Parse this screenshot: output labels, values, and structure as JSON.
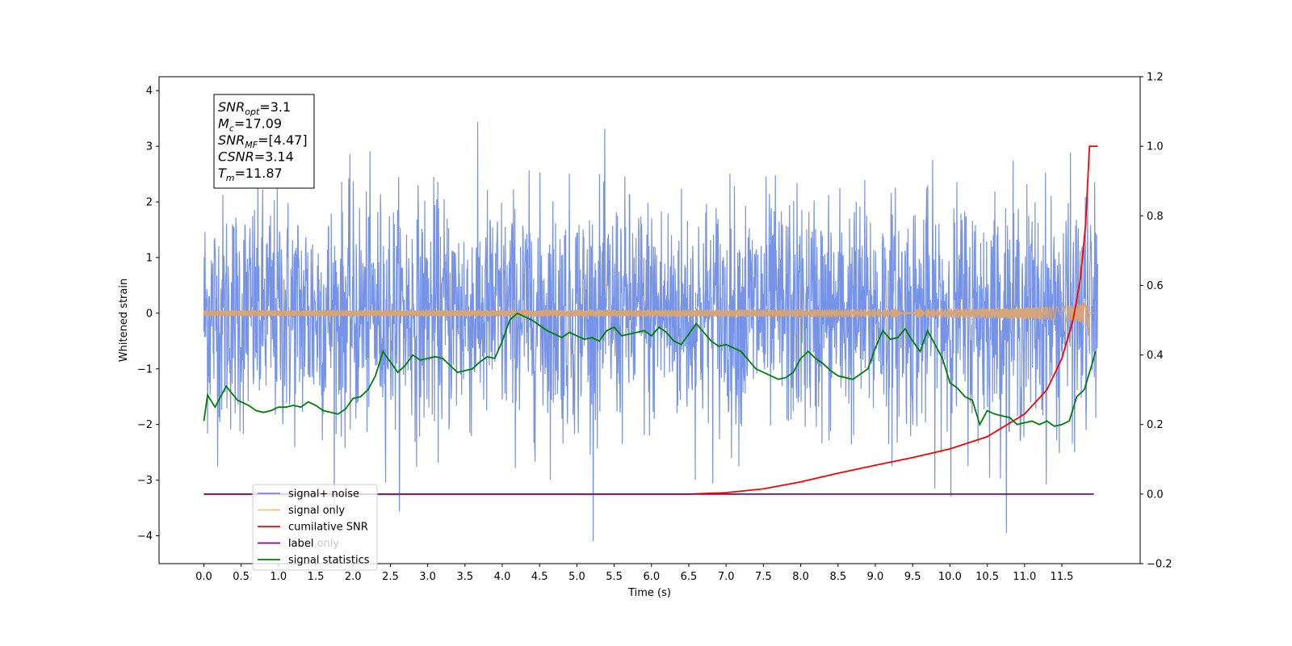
{
  "chart_data": {
    "type": "line",
    "title": "",
    "xlabel": "Time (s)",
    "ylabel": "Whitened strain",
    "ylabel_right": "",
    "xlim": [
      -0.6,
      12.55
    ],
    "ylim": [
      -4.5,
      4.25
    ],
    "ylim_right": [
      -0.2,
      1.2
    ],
    "x_ticks": [
      0.0,
      0.5,
      1.0,
      1.5,
      2.0,
      2.5,
      3.0,
      3.5,
      4.0,
      4.5,
      5.0,
      5.5,
      6.0,
      6.5,
      7.0,
      7.5,
      8.0,
      8.5,
      9.0,
      9.5,
      10.0,
      10.5,
      11.0,
      11.5
    ],
    "x_tick_labels": [
      "0.0",
      "0.5",
      "1.0",
      "1.5",
      "2.0",
      "2.5",
      "3.0",
      "3.5",
      "4.0",
      "4.5",
      "5.0",
      "5.5",
      "6.0",
      "6.5",
      "7.0",
      "7.5",
      "8.0",
      "8.5",
      "9.0",
      "9.5",
      "10.0",
      "10.5",
      "11.0",
      "11.5"
    ],
    "y_ticks": [
      -4,
      -3,
      -2,
      -1,
      0,
      1,
      2,
      3,
      4
    ],
    "y_tick_labels": [
      "−4",
      "−3",
      "−2",
      "−1",
      "0",
      "1",
      "2",
      "3",
      "4"
    ],
    "y_right_ticks": [
      -0.2,
      0.0,
      0.2,
      0.4,
      0.6,
      0.8,
      1.0,
      1.2
    ],
    "y_right_tick_labels": [
      "−0.2",
      "0.0",
      "0.2",
      "0.4",
      "0.6",
      "0.8",
      "1.0",
      "1.2"
    ],
    "grid": false,
    "legend_position": "lower-left",
    "legend": [
      {
        "name": "signal+ noise",
        "color": "#6f8de6"
      },
      {
        "name": "signal only",
        "color": "#f6bf6f"
      },
      {
        "name": "cumilative SNR",
        "color": "#ff0000"
      },
      {
        "name": "label",
        "color": "#800080"
      },
      {
        "name": "signal statistics",
        "color": "#008000"
      }
    ],
    "hidden_legend_text": "label only",
    "annotation": {
      "lines": [
        {
          "var": "SNR",
          "sub": "opt",
          "value": "=3.1"
        },
        {
          "var": "M",
          "sub": "c",
          "value": "=17.09"
        },
        {
          "var": "SNR",
          "sub": "MF",
          "value": "=[4.47]"
        },
        {
          "var": "CSNR",
          "sub": "",
          "value": "=3.14"
        },
        {
          "var": "T",
          "sub": "m",
          "value": "=11.87"
        }
      ]
    },
    "series": [
      {
        "name": "signal+ noise",
        "axis": "left",
        "color": "#6f8de6",
        "noise": {
          "x_start": 0.0,
          "x_end": 11.98,
          "samples": 2400,
          "std": 1.05,
          "peak": 3.85,
          "trough": -4.1
        }
      },
      {
        "name": "signal only",
        "axis": "left",
        "color": "#d4a57a",
        "chirp": {
          "x_start": 0.0,
          "x_end": 11.98,
          "merger_time": 11.87,
          "final_amplitude": 0.6
        }
      },
      {
        "name": "cumilative SNR",
        "axis": "right",
        "x": [
          0.0,
          6.5,
          7.0,
          7.5,
          8.0,
          8.5,
          9.0,
          9.5,
          10.0,
          10.5,
          11.0,
          11.3,
          11.5,
          11.65,
          11.75,
          11.82,
          11.87,
          11.98
        ],
        "values": [
          0.0,
          0.0,
          0.004,
          0.015,
          0.035,
          0.06,
          0.083,
          0.105,
          0.13,
          0.165,
          0.23,
          0.3,
          0.39,
          0.5,
          0.62,
          0.78,
          1.0,
          1.0
        ]
      },
      {
        "name": "label",
        "axis": "right",
        "x": [
          0.0,
          11.93
        ],
        "values": [
          0.0,
          0.0
        ]
      },
      {
        "name": "signal statistics",
        "axis": "right",
        "x": [
          0.0,
          0.05,
          0.15,
          0.3,
          0.45,
          0.6,
          0.7,
          0.8,
          0.9,
          1.0,
          1.1,
          1.2,
          1.3,
          1.4,
          1.5,
          1.6,
          1.7,
          1.8,
          1.9,
          2.0,
          2.1,
          2.2,
          2.3,
          2.4,
          2.5,
          2.6,
          2.7,
          2.8,
          2.9,
          3.0,
          3.1,
          3.2,
          3.3,
          3.4,
          3.5,
          3.6,
          3.7,
          3.8,
          3.9,
          4.0,
          4.1,
          4.2,
          4.3,
          4.4,
          4.5,
          4.6,
          4.7,
          4.8,
          4.9,
          5.0,
          5.1,
          5.2,
          5.3,
          5.4,
          5.5,
          5.6,
          5.7,
          5.8,
          5.9,
          6.0,
          6.1,
          6.2,
          6.3,
          6.4,
          6.5,
          6.6,
          6.7,
          6.8,
          6.9,
          7.0,
          7.1,
          7.2,
          7.3,
          7.4,
          7.5,
          7.6,
          7.7,
          7.8,
          7.9,
          8.0,
          8.1,
          8.2,
          8.3,
          8.4,
          8.5,
          8.6,
          8.7,
          8.8,
          8.9,
          9.0,
          9.1,
          9.2,
          9.3,
          9.4,
          9.5,
          9.6,
          9.7,
          9.8,
          9.9,
          10.0,
          10.1,
          10.2,
          10.3,
          10.4,
          10.5,
          10.6,
          10.7,
          10.8,
          10.9,
          11.0,
          11.1,
          11.2,
          11.3,
          11.4,
          11.5,
          11.6,
          11.7,
          11.8,
          11.9,
          11.95
        ],
        "values": [
          0.21,
          0.285,
          0.25,
          0.31,
          0.27,
          0.255,
          0.24,
          0.235,
          0.24,
          0.25,
          0.25,
          0.255,
          0.25,
          0.265,
          0.255,
          0.24,
          0.235,
          0.23,
          0.245,
          0.275,
          0.28,
          0.3,
          0.34,
          0.41,
          0.38,
          0.35,
          0.37,
          0.4,
          0.385,
          0.39,
          0.395,
          0.39,
          0.37,
          0.35,
          0.355,
          0.36,
          0.38,
          0.395,
          0.39,
          0.44,
          0.5,
          0.52,
          0.51,
          0.5,
          0.485,
          0.47,
          0.46,
          0.45,
          0.465,
          0.455,
          0.445,
          0.45,
          0.44,
          0.47,
          0.48,
          0.455,
          0.46,
          0.465,
          0.47,
          0.455,
          0.48,
          0.465,
          0.44,
          0.43,
          0.46,
          0.49,
          0.465,
          0.44,
          0.425,
          0.43,
          0.42,
          0.41,
          0.385,
          0.36,
          0.35,
          0.34,
          0.33,
          0.335,
          0.35,
          0.39,
          0.41,
          0.39,
          0.375,
          0.355,
          0.34,
          0.335,
          0.33,
          0.345,
          0.36,
          0.42,
          0.47,
          0.445,
          0.45,
          0.475,
          0.44,
          0.41,
          0.47,
          0.43,
          0.39,
          0.32,
          0.305,
          0.28,
          0.27,
          0.2,
          0.24,
          0.23,
          0.225,
          0.22,
          0.2,
          0.205,
          0.21,
          0.2,
          0.21,
          0.195,
          0.2,
          0.21,
          0.28,
          0.3,
          0.37,
          0.41
        ]
      }
    ]
  }
}
